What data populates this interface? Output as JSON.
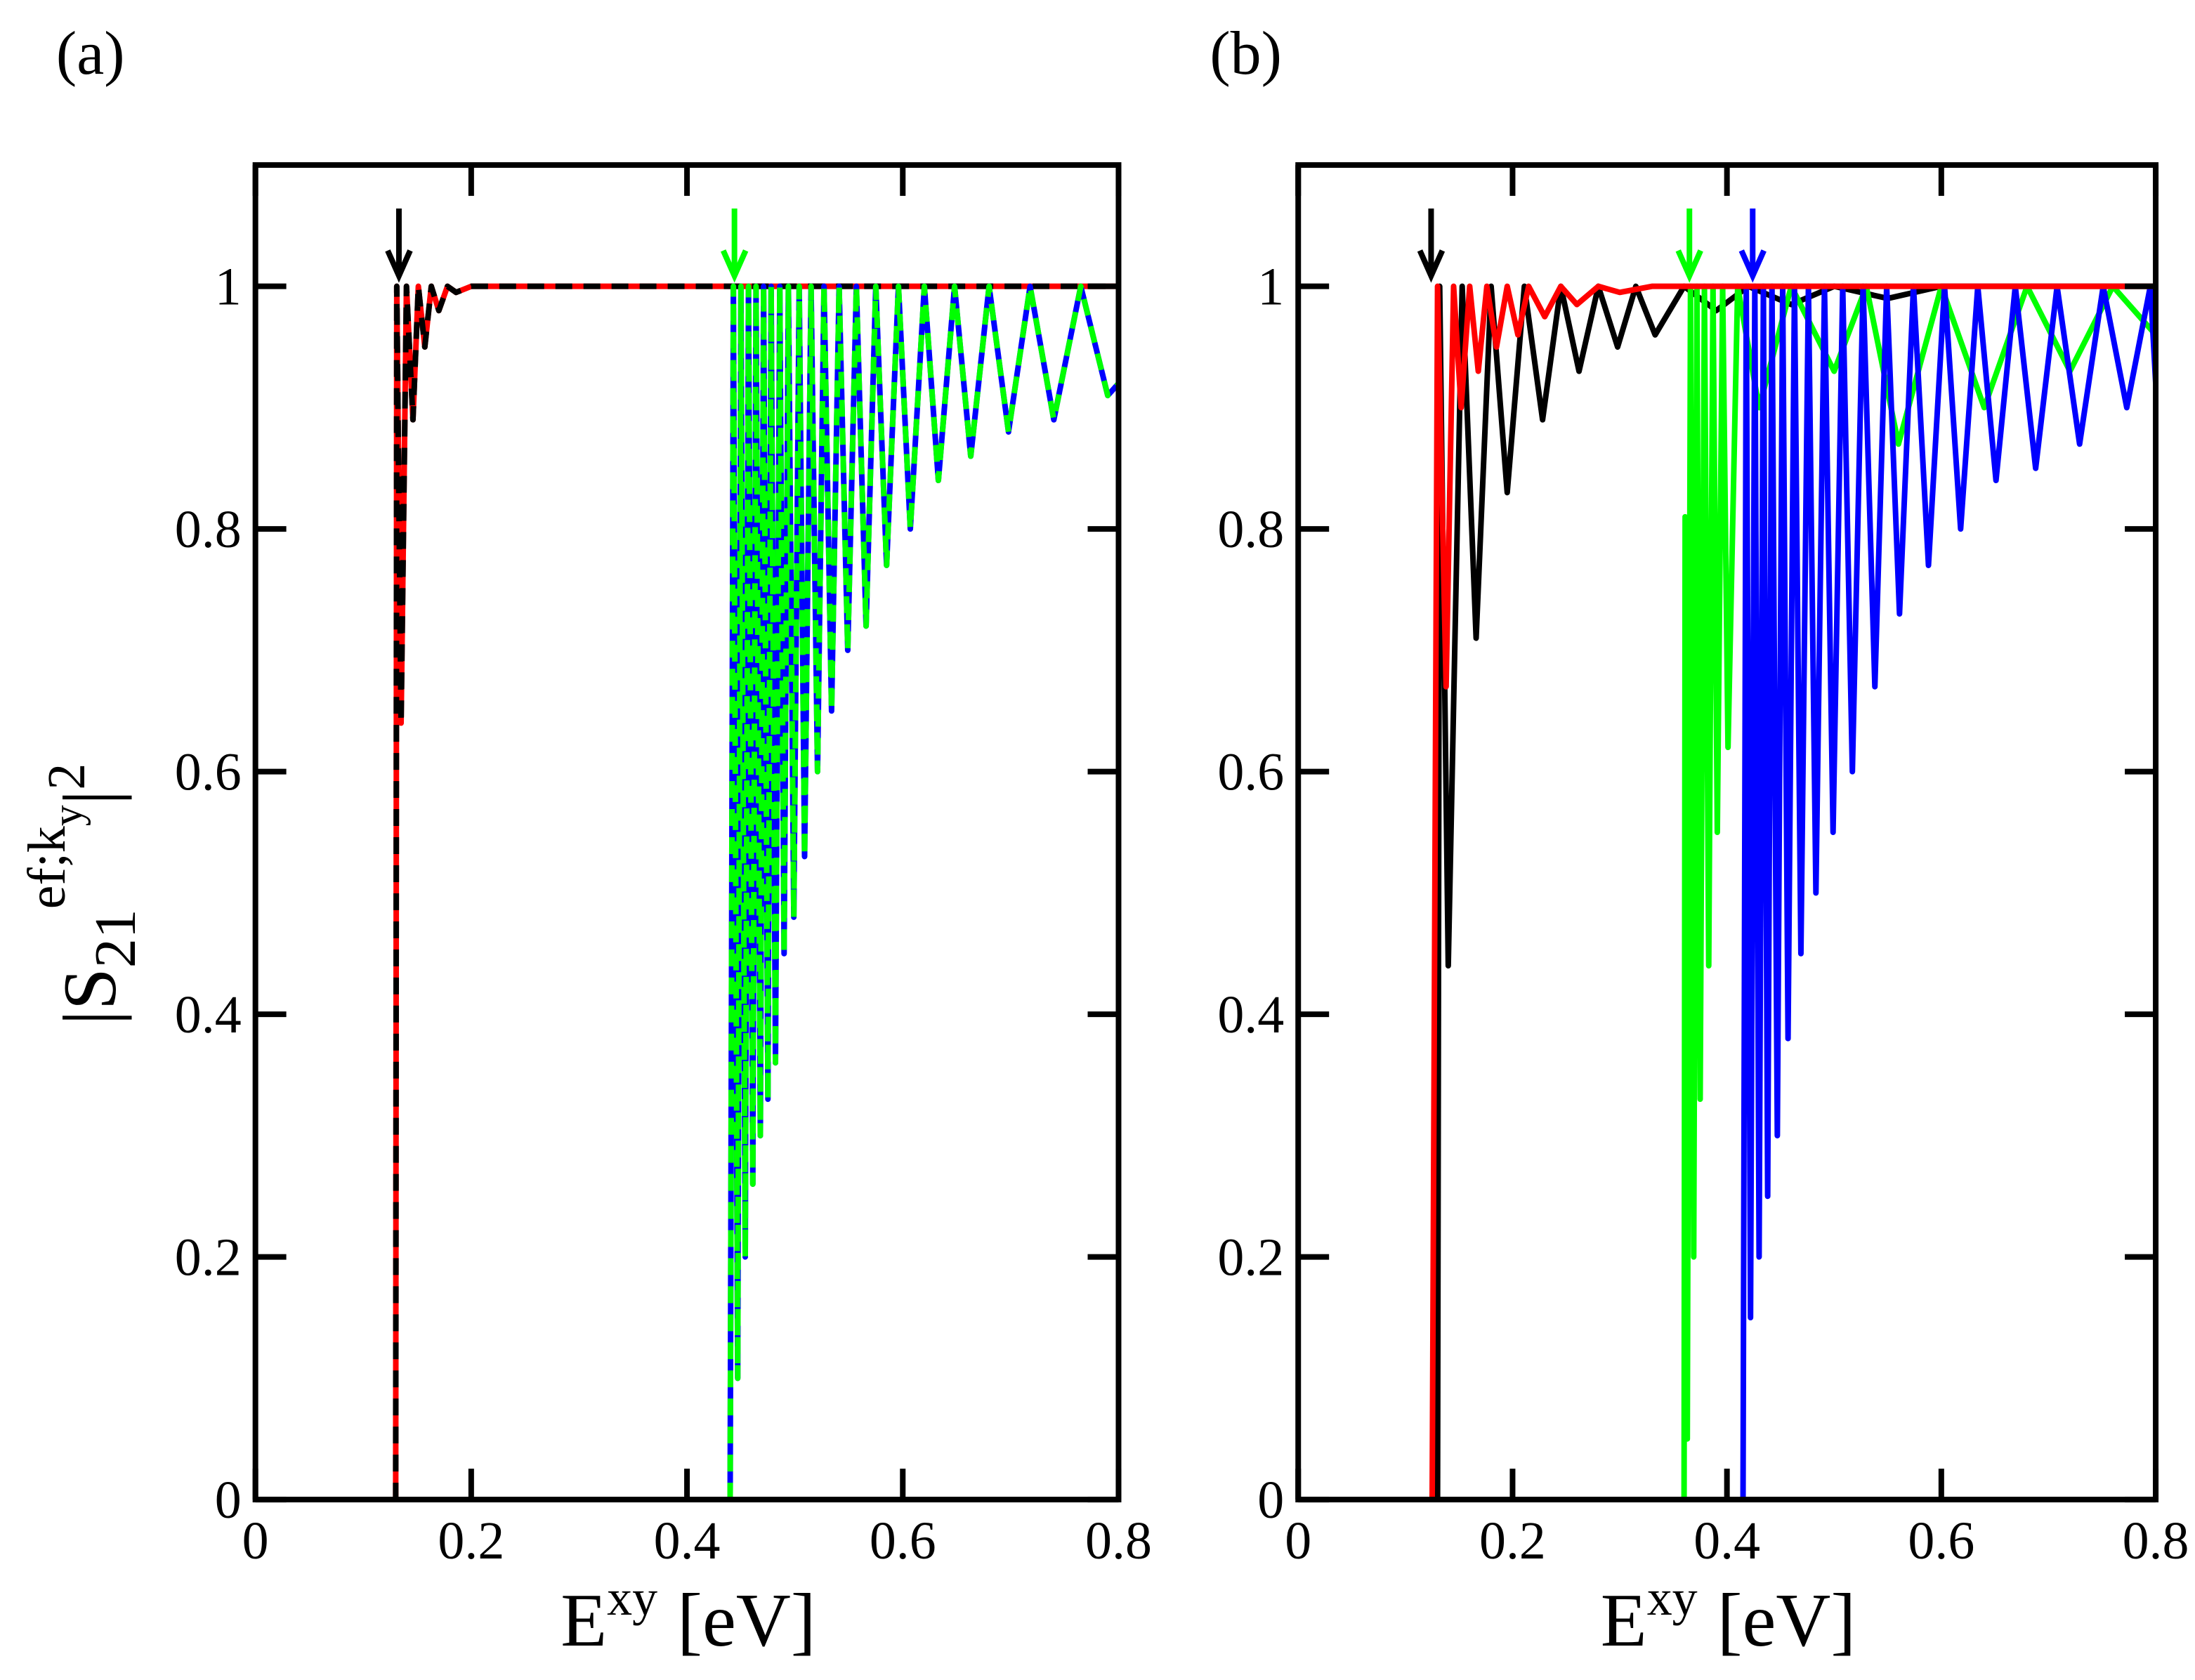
{
  "chart_data": [
    {
      "type": "line",
      "panel_label": "(a)",
      "xlabel_parts": [
        "E",
        "xy",
        "[eV]"
      ],
      "ylabel_parts": [
        "|S",
        "21",
        "ef;k",
        "y",
        "|",
        "2"
      ],
      "xlim": [
        0,
        0.8
      ],
      "ylim": [
        0,
        1.1
      ],
      "xticks": [
        0,
        0.2,
        0.4,
        0.6,
        0.8
      ],
      "yticks": [
        0,
        0.2,
        0.4,
        0.6,
        0.8,
        1
      ],
      "series": [
        {
          "color": "#ff0000",
          "x": [
            0.13,
            0.131,
            0.135,
            0.14,
            0.146,
            0.151,
            0.157,
            0.163,
            0.17,
            0.178,
            0.186,
            0.2,
            0.8
          ],
          "values": [
            0,
            1,
            0.64,
            1,
            0.89,
            1,
            0.95,
            1,
            0.98,
            1,
            0.995,
            1,
            1
          ]
        },
        {
          "color": "#000000",
          "dashed": true,
          "x": [
            0.13,
            0.131,
            0.135,
            0.14,
            0.146,
            0.151,
            0.157,
            0.163,
            0.17,
            0.178,
            0.186,
            0.2,
            0.8
          ],
          "values": [
            0,
            1,
            0.64,
            1,
            0.89,
            1,
            0.95,
            1,
            0.98,
            1,
            0.995,
            1,
            1
          ]
        },
        {
          "color": "#0000ff",
          "x": [
            0.44,
            0.443,
            0.447,
            0.45,
            0.454,
            0.457,
            0.461,
            0.464,
            0.468,
            0.471,
            0.475,
            0.478,
            0.482,
            0.486,
            0.49,
            0.494,
            0.499,
            0.504,
            0.509,
            0.515,
            0.521,
            0.527,
            0.534,
            0.541,
            0.549,
            0.557,
            0.566,
            0.575,
            0.585,
            0.596,
            0.607,
            0.62,
            0.633,
            0.648,
            0.663,
            0.68,
            0.698,
            0.718,
            0.74,
            0.765,
            0.79,
            0.8
          ],
          "values": [
            0,
            1,
            0.1,
            1,
            0.2,
            1,
            0.26,
            1,
            0.3,
            1,
            0.33,
            1,
            0.36,
            1,
            0.45,
            1,
            0.48,
            1,
            0.53,
            1,
            0.6,
            1,
            0.65,
            1,
            0.7,
            1,
            0.72,
            1,
            0.77,
            1,
            0.8,
            1,
            0.84,
            1,
            0.86,
            1,
            0.88,
            1,
            0.89,
            1,
            0.91,
            0.92
          ]
        },
        {
          "color": "#00ff00",
          "dashed": true,
          "x": [
            0.44,
            0.443,
            0.447,
            0.45,
            0.454,
            0.457,
            0.461,
            0.464,
            0.468,
            0.471,
            0.475,
            0.478,
            0.482,
            0.486,
            0.49,
            0.494,
            0.499,
            0.504,
            0.509,
            0.515,
            0.521,
            0.527,
            0.534,
            0.541,
            0.549,
            0.557,
            0.566,
            0.575,
            0.585,
            0.596,
            0.607,
            0.62,
            0.633,
            0.648,
            0.663,
            0.68,
            0.698,
            0.718,
            0.74,
            0.765,
            0.79,
            0.8
          ],
          "values": [
            0,
            1,
            0.1,
            1,
            0.2,
            1,
            0.26,
            1,
            0.3,
            1,
            0.33,
            1,
            0.36,
            1,
            0.45,
            1,
            0.48,
            1,
            0.53,
            1,
            0.6,
            1,
            0.65,
            1,
            0.7,
            1,
            0.72,
            1,
            0.77,
            1,
            0.8,
            1,
            0.84,
            1,
            0.86,
            1,
            0.88,
            1,
            0.89,
            1,
            0.91,
            0.92
          ]
        }
      ],
      "arrows": [
        {
          "x": 0.133,
          "color": "#000000"
        },
        {
          "x": 0.444,
          "color": "#00ff00"
        }
      ]
    },
    {
      "type": "line",
      "panel_label": "(b)",
      "xlabel_parts": [
        "E",
        "xy",
        "[eV]"
      ],
      "xlim": [
        0,
        0.8
      ],
      "ylim": [
        0,
        1.1
      ],
      "xticks": [
        0,
        0.2,
        0.4,
        0.6,
        0.8
      ],
      "yticks": [
        0,
        0.2,
        0.4,
        0.6,
        0.8,
        1
      ],
      "series": [
        {
          "color": "#000000",
          "x": [
            0.13,
            0.132,
            0.14,
            0.153,
            0.166,
            0.18,
            0.195,
            0.211,
            0.228,
            0.245,
            0.262,
            0.28,
            0.298,
            0.315,
            0.333,
            0.36,
            0.39,
            0.42,
            0.46,
            0.5,
            0.55,
            0.6,
            0.7,
            0.8
          ],
          "values": [
            0,
            1,
            0.44,
            1,
            0.71,
            1,
            0.83,
            1,
            0.89,
            1,
            0.93,
            1,
            0.95,
            1,
            0.96,
            1,
            0.98,
            1,
            0.985,
            1,
            0.99,
            1,
            1,
            1
          ]
        },
        {
          "color": "#00ff00",
          "x": [
            0.36,
            0.361,
            0.363,
            0.366,
            0.369,
            0.372,
            0.375,
            0.379,
            0.383,
            0.387,
            0.391,
            0.396,
            0.401,
            0.41,
            0.43,
            0.46,
            0.5,
            0.53,
            0.56,
            0.6,
            0.64,
            0.68,
            0.72,
            0.76,
            0.8
          ],
          "values": [
            0,
            0.81,
            0.05,
            1,
            0.2,
            1,
            0.33,
            1,
            0.44,
            1,
            0.55,
            1,
            0.62,
            1,
            0.9,
            1,
            0.93,
            1,
            0.87,
            1,
            0.9,
            1,
            0.93,
            1,
            0.96
          ]
        },
        {
          "color": "#0000ff",
          "x": [
            0.415,
            0.418,
            0.422,
            0.426,
            0.43,
            0.434,
            0.438,
            0.442,
            0.447,
            0.452,
            0.457,
            0.463,
            0.469,
            0.476,
            0.483,
            0.491,
            0.499,
            0.508,
            0.517,
            0.527,
            0.538,
            0.549,
            0.561,
            0.574,
            0.588,
            0.603,
            0.618,
            0.634,
            0.651,
            0.669,
            0.688,
            0.708,
            0.729,
            0.751,
            0.773,
            0.795,
            0.8
          ],
          "values": [
            0,
            1,
            0.15,
            1,
            0.2,
            1,
            0.25,
            1,
            0.3,
            1,
            0.38,
            1,
            0.45,
            1,
            0.5,
            1,
            0.55,
            1,
            0.6,
            1,
            0.67,
            1,
            0.73,
            1,
            0.77,
            1,
            0.8,
            1,
            0.84,
            1,
            0.85,
            1,
            0.87,
            1,
            0.9,
            1,
            0.92
          ]
        },
        {
          "color": "#ff0000",
          "x": [
            0.125,
            0.13,
            0.138,
            0.145,
            0.152,
            0.16,
            0.168,
            0.176,
            0.185,
            0.195,
            0.205,
            0.215,
            0.23,
            0.245,
            0.26,
            0.28,
            0.3,
            0.33,
            0.8
          ],
          "values": [
            0,
            1,
            0.67,
            1,
            0.9,
            1,
            0.93,
            1,
            0.95,
            1,
            0.96,
            1,
            0.975,
            1,
            0.985,
            1,
            0.995,
            1,
            1
          ]
        }
      ],
      "arrows": [
        {
          "x": 0.124,
          "color": "#000000"
        },
        {
          "x": 0.365,
          "color": "#00ff00"
        },
        {
          "x": 0.424,
          "color": "#0000ff"
        }
      ]
    }
  ]
}
